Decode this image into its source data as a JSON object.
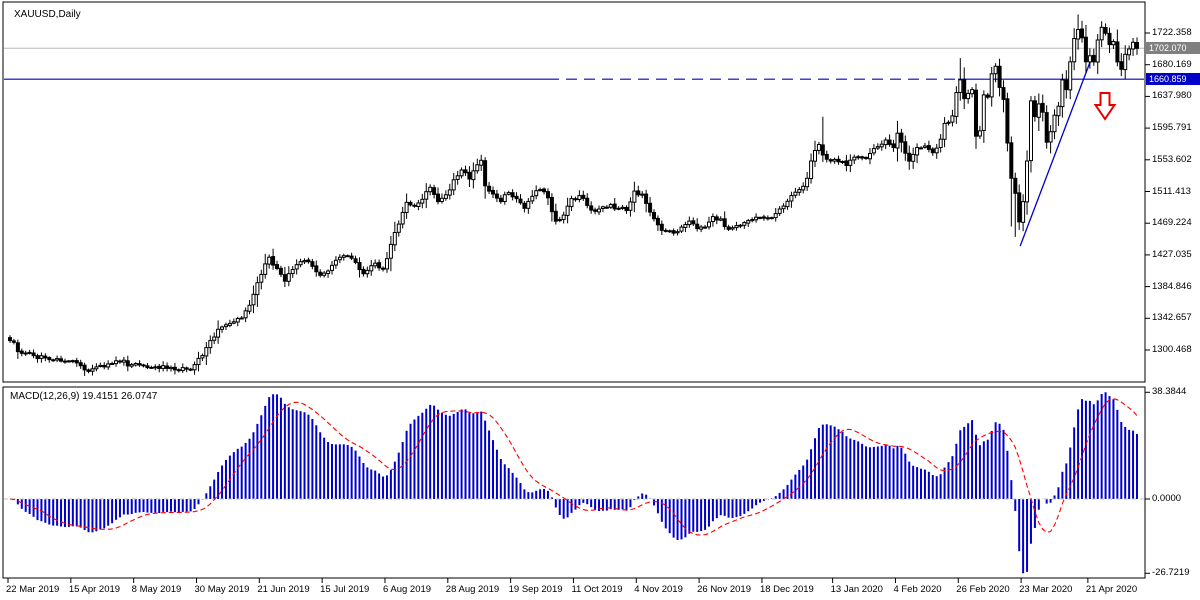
{
  "window": {
    "background": "#ffffff",
    "panel_border_color": "#000000"
  },
  "main_chart": {
    "label": "XAUUSD,Daily",
    "symbol": "XAUUSD",
    "timeframe": "Daily",
    "candle_up_fill": "#ffffff",
    "candle_down_fill": "#000000",
    "candle_outline": "#000000",
    "current_price": {
      "label": "1702.070",
      "value": 1702.07,
      "line_color": "#b8b8b8",
      "tag_bg": "#808080"
    },
    "hline": {
      "label": "1660.859",
      "value": 1660.859,
      "color": "#0000c8",
      "tag_bg": "#0000c8"
    },
    "trendline": {
      "color": "#0000c8",
      "from_price": 1451,
      "to_price": 1700
    },
    "arrow": {
      "shape": "down-arrow",
      "outline_color": "#e80000",
      "fill_color": "#ffffff"
    },
    "y_axis_labels": [
      "1722.358",
      "1680.169",
      "1637.980",
      "1595.791",
      "1553.602",
      "1511.413",
      "1469.224",
      "1427.035",
      "1384.846",
      "1342.657",
      "1300.468"
    ]
  },
  "indicator": {
    "label": "MACD(12,26,9) 19.4151 26.0747",
    "name": "MACD",
    "params": [
      12,
      26,
      9
    ],
    "macd_value": 19.4151,
    "signal_value": 26.0747,
    "histogram_color": "#0000cd",
    "signal_color": "#ff0000",
    "zero_line_color": "#c0c0c0",
    "y_axis_labels": [
      "38.3844",
      "0.0000",
      "-26.7219"
    ]
  },
  "x_axis": {
    "labels": [
      "22 Mar 2019",
      "15 Apr 2019",
      "8 May 2019",
      "30 May 2019",
      "21 Jun 2019",
      "15 Jul 2019",
      "6 Aug 2019",
      "28 Aug 2019",
      "19 Sep 2019",
      "11 Oct 2019",
      "4 Nov 2019",
      "26 Nov 2019",
      "18 Dec 2019",
      "13 Jan 2020",
      "4 Feb 2020",
      "26 Feb 2020",
      "23 Mar 2020",
      "21 Apr 2020"
    ],
    "bar_indices": [
      0,
      16,
      32,
      48,
      64,
      80,
      96,
      112,
      128,
      144,
      160,
      176,
      192,
      210,
      226,
      242,
      258,
      275
    ]
  },
  "chart_data": [
    {
      "type": "candlestick",
      "title": "XAUUSD,Daily",
      "n_bars": 288,
      "ylim": [
        1258,
        1756
      ],
      "yticks": [
        1722.358,
        1680.169,
        1637.98,
        1595.791,
        1553.602,
        1511.413,
        1469.224,
        1427.035,
        1384.846,
        1342.657,
        1300.468
      ],
      "xticklabels": [
        "22 Mar 2019",
        "15 Apr 2019",
        "8 May 2019",
        "30 May 2019",
        "21 Jun 2019",
        "15 Jul 2019",
        "6 Aug 2019",
        "28 Aug 2019",
        "19 Sep 2019",
        "11 Oct 2019",
        "4 Nov 2019",
        "26 Nov 2019",
        "18 Dec 2019",
        "13 Jan 2020",
        "4 Feb 2020",
        "26 Feb 2020",
        "23 Mar 2020",
        "21 Apr 2020"
      ],
      "grid": false,
      "last_close": 1702.07,
      "hline_level": 1660.859,
      "close_anchors": [
        [
          0,
          1313
        ],
        [
          3,
          1296
        ],
        [
          6,
          1293
        ],
        [
          9,
          1290
        ],
        [
          12,
          1289
        ],
        [
          15,
          1286
        ],
        [
          19,
          1274
        ],
        [
          22,
          1278
        ],
        [
          25,
          1282
        ],
        [
          28,
          1285
        ],
        [
          31,
          1281
        ],
        [
          34,
          1280
        ],
        [
          37,
          1278
        ],
        [
          40,
          1276
        ],
        [
          43,
          1273
        ],
        [
          45,
          1275
        ],
        [
          47,
          1281
        ],
        [
          49,
          1293
        ],
        [
          51,
          1313
        ],
        [
          53,
          1328
        ],
        [
          55,
          1334
        ],
        [
          57,
          1338
        ],
        [
          59,
          1343
        ],
        [
          61,
          1360
        ],
        [
          63,
          1390
        ],
        [
          65,
          1415
        ],
        [
          66,
          1424
        ],
        [
          68,
          1409
        ],
        [
          70,
          1392
        ],
        [
          73,
          1414
        ],
        [
          76,
          1418
        ],
        [
          79,
          1400
        ],
        [
          82,
          1413
        ],
        [
          85,
          1426
        ],
        [
          88,
          1417
        ],
        [
          90,
          1402
        ],
        [
          93,
          1416
        ],
        [
          95,
          1408
        ],
        [
          97,
          1441
        ],
        [
          99,
          1468
        ],
        [
          101,
          1497
        ],
        [
          103,
          1492
        ],
        [
          105,
          1501
        ],
        [
          107,
          1517
        ],
        [
          109,
          1498
        ],
        [
          111,
          1507
        ],
        [
          113,
          1527
        ],
        [
          115,
          1540
        ],
        [
          117,
          1528
        ],
        [
          119,
          1547
        ],
        [
          120,
          1553
        ],
        [
          121,
          1519
        ],
        [
          123,
          1508
        ],
        [
          125,
          1498
        ],
        [
          127,
          1510
        ],
        [
          129,
          1502
        ],
        [
          131,
          1489
        ],
        [
          133,
          1505
        ],
        [
          135,
          1514
        ],
        [
          137,
          1503
        ],
        [
          139,
          1472
        ],
        [
          141,
          1480
        ],
        [
          143,
          1502
        ],
        [
          145,
          1506
        ],
        [
          147,
          1493
        ],
        [
          149,
          1485
        ],
        [
          151,
          1491
        ],
        [
          153,
          1494
        ],
        [
          155,
          1489
        ],
        [
          157,
          1486
        ],
        [
          159,
          1512
        ],
        [
          161,
          1508
        ],
        [
          163,
          1484
        ],
        [
          165,
          1467
        ],
        [
          167,
          1459
        ],
        [
          169,
          1456
        ],
        [
          171,
          1464
        ],
        [
          173,
          1472
        ],
        [
          175,
          1462
        ],
        [
          177,
          1464
        ],
        [
          179,
          1478
        ],
        [
          181,
          1475
        ],
        [
          183,
          1461
        ],
        [
          185,
          1466
        ],
        [
          187,
          1470
        ],
        [
          189,
          1474
        ],
        [
          191,
          1477
        ],
        [
          193,
          1476
        ],
        [
          195,
          1482
        ],
        [
          197,
          1492
        ],
        [
          199,
          1506
        ],
        [
          201,
          1514
        ],
        [
          203,
          1529
        ],
        [
          204,
          1552
        ],
        [
          205,
          1566
        ],
        [
          206,
          1574
        ],
        [
          207,
          1560
        ],
        [
          209,
          1552
        ],
        [
          211,
          1551
        ],
        [
          213,
          1546
        ],
        [
          215,
          1557
        ],
        [
          217,
          1556
        ],
        [
          219,
          1562
        ],
        [
          221,
          1571
        ],
        [
          223,
          1580
        ],
        [
          225,
          1570
        ],
        [
          226,
          1589
        ],
        [
          227,
          1577
        ],
        [
          229,
          1552
        ],
        [
          231,
          1570
        ],
        [
          233,
          1572
        ],
        [
          235,
          1563
        ],
        [
          237,
          1581
        ],
        [
          238,
          1602
        ],
        [
          240,
          1612
        ],
        [
          241,
          1643
        ],
        [
          242,
          1660
        ],
        [
          243,
          1635
        ],
        [
          244,
          1642
        ],
        [
          245,
          1647
        ],
        [
          246,
          1585
        ],
        [
          247,
          1592
        ],
        [
          248,
          1640
        ],
        [
          249,
          1637
        ],
        [
          250,
          1668
        ],
        [
          251,
          1678
        ],
        [
          252,
          1650
        ],
        [
          253,
          1634
        ],
        [
          254,
          1576
        ],
        [
          255,
          1529
        ],
        [
          256,
          1509
        ],
        [
          257,
          1471
        ],
        [
          258,
          1498
        ],
        [
          259,
          1552
        ],
        [
          260,
          1632
        ],
        [
          261,
          1611
        ],
        [
          262,
          1628
        ],
        [
          263,
          1617
        ],
        [
          264,
          1577
        ],
        [
          265,
          1591
        ],
        [
          266,
          1613
        ],
        [
          267,
          1625
        ],
        [
          268,
          1660
        ],
        [
          269,
          1647
        ],
        [
          270,
          1684
        ],
        [
          271,
          1715
        ],
        [
          272,
          1727
        ],
        [
          273,
          1716
        ],
        [
          274,
          1684
        ],
        [
          275,
          1692
        ],
        [
          276,
          1684
        ],
        [
          277,
          1713
        ],
        [
          278,
          1730
        ],
        [
          279,
          1722
        ],
        [
          280,
          1707
        ],
        [
          281,
          1711
        ],
        [
          282,
          1684
        ],
        [
          283,
          1674
        ],
        [
          284,
          1694
        ],
        [
          285,
          1701
        ],
        [
          286,
          1710
        ],
        [
          287,
          1702
        ]
      ],
      "special_wicks": {
        "19": {
          "low": 1266
        },
        "121": {
          "high": 1557
        },
        "207": {
          "high": 1611
        },
        "242": {
          "high": 1689
        },
        "255": {
          "low": 1465
        },
        "256": {
          "low": 1451
        },
        "272": {
          "high": 1747
        },
        "278": {
          "high": 1738
        }
      },
      "annotations": {
        "horizontal_line": 1660.859,
        "trendline_from_bar": 257,
        "trendline_to_bar": 276,
        "sell_arrow_near_bar": 279
      }
    },
    {
      "type": "bar",
      "subtype": "macd-histogram-with-signal",
      "title": "MACD(12,26,9)",
      "derived_from": "candlestick closes, EMA12 - EMA26, signal = SMA9",
      "ylim": [
        -26.7219,
        38.3844
      ],
      "yticks": [
        38.3844,
        0.0,
        -26.7219
      ],
      "max_value": 38.3844,
      "min_value": -26.7219,
      "last_macd": 19.4151,
      "last_signal": 26.0747,
      "legend_position": "none",
      "grid": false
    }
  ]
}
